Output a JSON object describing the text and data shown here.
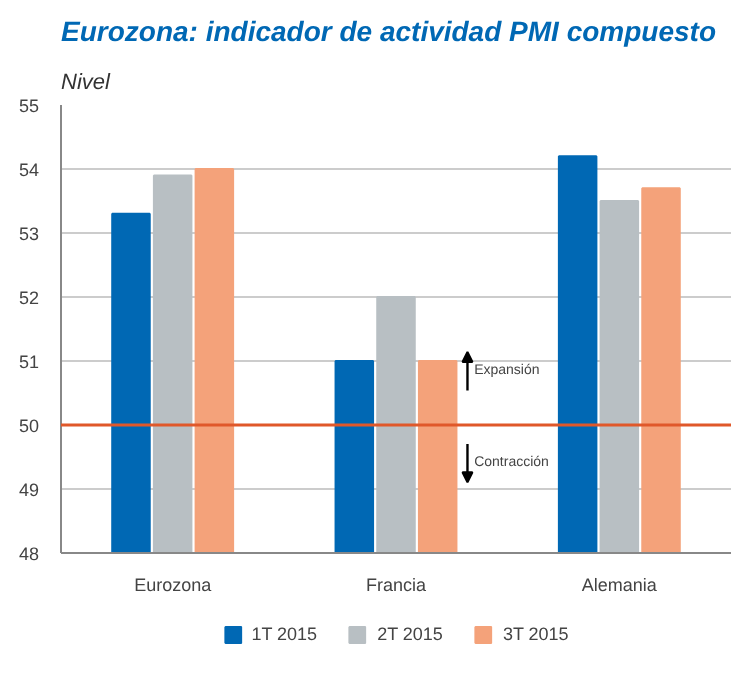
{
  "chart_data": {
    "type": "bar",
    "title": "Eurozona: indicador de actividad PMI compuesto",
    "ylabel": "Nivel",
    "categories": [
      "Eurozona",
      "Francia",
      "Alemania"
    ],
    "series": [
      {
        "name": "1T 2015",
        "color": "#0068b4",
        "values": [
          53.3,
          51.0,
          54.2
        ]
      },
      {
        "name": "2T 2015",
        "color": "#b8bfc3",
        "values": [
          53.9,
          52.0,
          53.5
        ]
      },
      {
        "name": "3T 2015",
        "color": "#f4a27a",
        "values": [
          54.0,
          51.0,
          53.7
        ]
      }
    ],
    "ylim": [
      48,
      55
    ],
    "yticks": [
      48,
      49,
      50,
      51,
      52,
      53,
      54,
      55
    ],
    "grid": "y",
    "legend": "bottom",
    "ref_lines": [
      {
        "axis": "y",
        "value": 50,
        "color": "#e0582a"
      }
    ],
    "annotations": [
      "Expansión",
      "Contracción"
    ]
  }
}
